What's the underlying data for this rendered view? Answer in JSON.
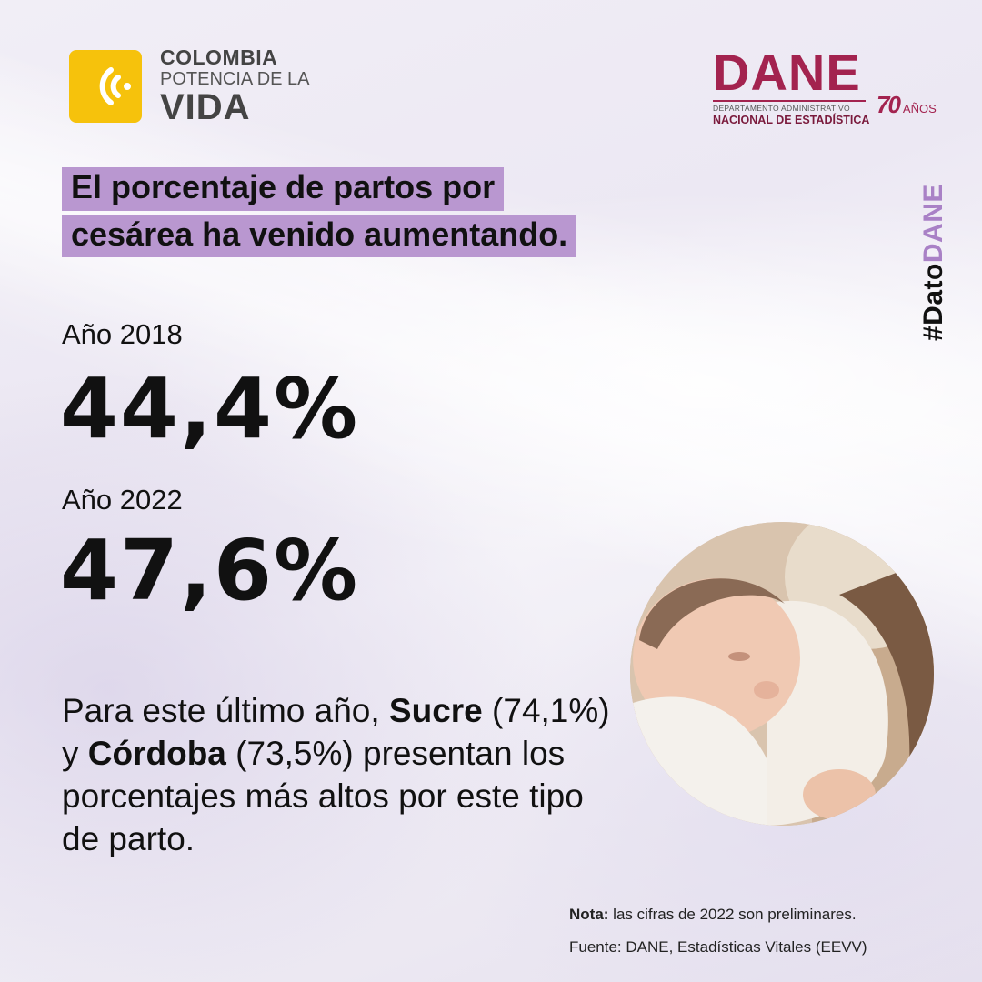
{
  "logos": {
    "colombia": {
      "line1": "COLOMBIA",
      "line2": "POTENCIA DE LA",
      "line3": "VIDA",
      "color": "#f6c20c"
    },
    "dane": {
      "name": "DANE",
      "sub1": "DEPARTAMENTO ADMINISTRATIVO",
      "sub2": "NACIONAL DE ESTADÍSTICA",
      "anniversary_number": "70",
      "anniversary_word": "AÑOS",
      "color": "#a3234f"
    }
  },
  "headline": {
    "line1": "El porcentaje de partos por",
    "line2": "cesárea ha venido aumentando.",
    "highlight_color": "#b997d0"
  },
  "hashtag": {
    "prefix": "#Dato",
    "highlight": "DANE"
  },
  "stats": [
    {
      "label": "Año 2018",
      "value": "44,4%"
    },
    {
      "label": "Año 2022",
      "value": "47,6%"
    }
  ],
  "paragraph": {
    "t1": "Para este último año, ",
    "b1": "Sucre",
    "t2": " (74,1%) y ",
    "b2": "Córdoba",
    "t3": " (73,5%) presentan los porcentajes más altos por este tipo de parto."
  },
  "photo": {
    "icon": "newborn-baby-photo"
  },
  "notes": {
    "nota_label": "Nota:",
    "nota_text": " las cifras de 2022 son preliminares.",
    "fuente": "Fuente:  DANE, Estadísticas Vitales (EEVV)"
  }
}
